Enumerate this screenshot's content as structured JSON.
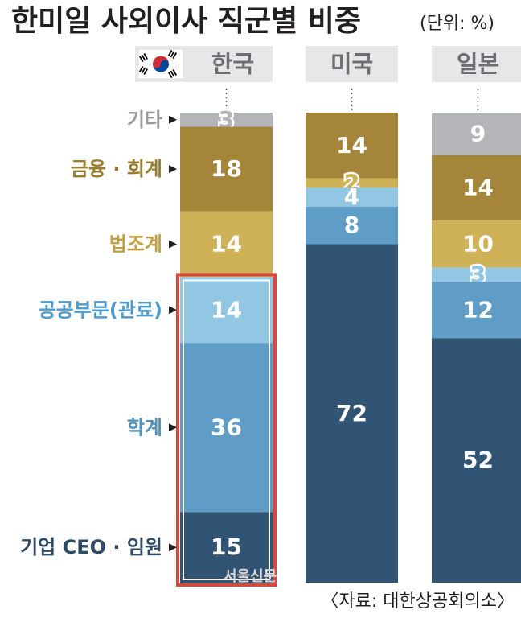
{
  "title": "한미일 사외이사 직군별 비중",
  "unit": "(단위: %)",
  "source": "〈자료: 대한상공회의소〉",
  "watermark": "서울신문",
  "colors": {
    "other": "#b4b5b8",
    "finance": "#a5853a",
    "legal": "#cfb258",
    "public": "#92c7e4",
    "academia": "#5f9cc6",
    "business": "#315475",
    "highlight": "#d9473d",
    "header_bg": "#e6e7e8",
    "label_other": "#9a9b9e",
    "label_finance": "#9b7d2e",
    "label_legal": "#c2a042",
    "label_public": "#4f9bcd",
    "label_academia": "#4f92bf",
    "label_business": "#2e4a64"
  },
  "chart_data": {
    "type": "bar",
    "stacked": true,
    "percent_stacked": true,
    "categories": [
      "한국",
      "미국",
      "일본"
    ],
    "series": [
      {
        "name": "기타",
        "key": "other",
        "values": [
          3,
          0,
          9
        ]
      },
      {
        "name": "금융ㆍ회계",
        "key": "finance",
        "values": [
          18,
          14,
          14
        ]
      },
      {
        "name": "법조계",
        "key": "legal",
        "values": [
          14,
          2,
          10
        ]
      },
      {
        "name": "공공부문(관료)",
        "key": "public",
        "values": [
          14,
          4,
          3
        ]
      },
      {
        "name": "학계",
        "key": "academia",
        "values": [
          36,
          8,
          12
        ]
      },
      {
        "name": "기업 CEOㆍ임원",
        "key": "business",
        "values": [
          15,
          72,
          52
        ]
      }
    ],
    "category_labels": [
      "기타",
      "금융 · 회계",
      "법조계",
      "공공부문(관료)",
      "학계",
      "기업 CEO · 임원"
    ],
    "highlight": {
      "category": "한국",
      "series": [
        "공공부문(관료)",
        "학계",
        "기업 CEOㆍ임원"
      ]
    },
    "flag_icon": "korea-flag-icon"
  }
}
